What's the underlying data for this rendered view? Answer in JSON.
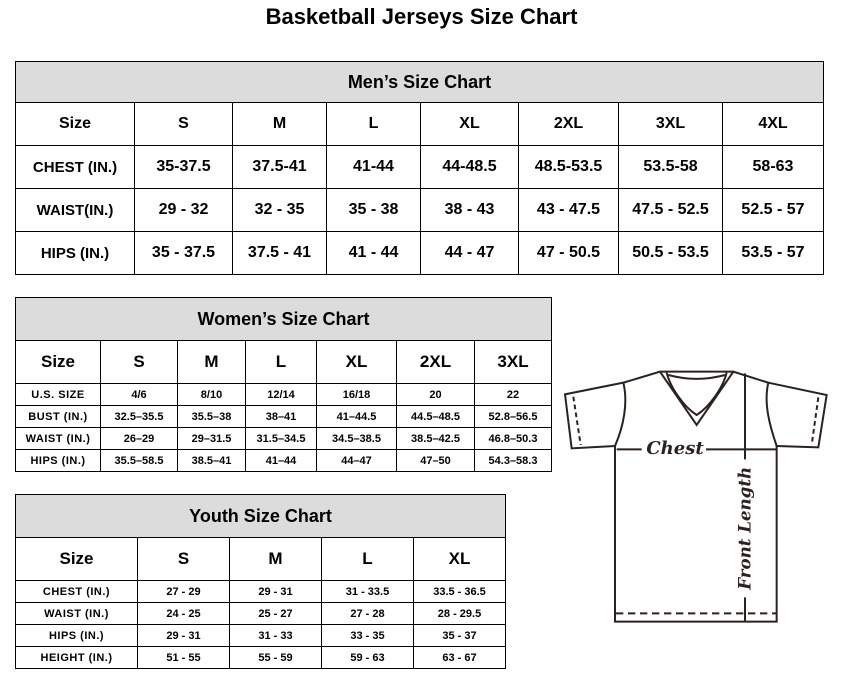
{
  "title": "Basketball Jerseys Size Chart",
  "men": {
    "heading": "Men’s Size Chart",
    "columns": [
      "Size",
      "S",
      "M",
      "L",
      "XL",
      "2XL",
      "3XL",
      "4XL"
    ],
    "rows": [
      [
        "CHEST (IN.)",
        "35-37.5",
        "37.5-41",
        "41-44",
        "44-48.5",
        "48.5-53.5",
        "53.5-58",
        "58-63"
      ],
      [
        "WAIST(IN.)",
        "29 - 32",
        "32 - 35",
        "35 - 38",
        "38 - 43",
        "43 - 47.5",
        "47.5 - 52.5",
        "52.5 - 57"
      ],
      [
        "HIPS (IN.)",
        "35 - 37.5",
        "37.5 - 41",
        "41 - 44",
        "44 - 47",
        "47 - 50.5",
        "50.5 - 53.5",
        "53.5 - 57"
      ]
    ]
  },
  "women": {
    "heading": "Women’s Size Chart",
    "columns": [
      "Size",
      "S",
      "M",
      "L",
      "XL",
      "2XL",
      "3XL"
    ],
    "rows": [
      [
        "U.S. SIZE",
        "4/6",
        "8/10",
        "12/14",
        "16/18",
        "20",
        "22"
      ],
      [
        "BUST (IN.)",
        "32.5–35.5",
        "35.5–38",
        "38–41",
        "41–44.5",
        "44.5–48.5",
        "52.8–56.5"
      ],
      [
        "WAIST (IN.)",
        "26–29",
        "29–31.5",
        "31.5–34.5",
        "34.5–38.5",
        "38.5–42.5",
        "46.8–50.3"
      ],
      [
        "HIPS (IN.)",
        "35.5–58.5",
        "38.5–41",
        "41–44",
        "44–47",
        "47–50",
        "54.3–58.3"
      ]
    ]
  },
  "youth": {
    "heading": "Youth Size Chart",
    "columns": [
      "Size",
      "S",
      "M",
      "L",
      "XL"
    ],
    "rows": [
      [
        "CHEST (IN.)",
        "27 - 29",
        "29 - 31",
        "31 - 33.5",
        "33.5 - 36.5"
      ],
      [
        "WAIST (IN.)",
        "24 - 25",
        "25 - 27",
        "27 - 28",
        "28 - 29.5"
      ],
      [
        "HIPS (IN.)",
        "29 - 31",
        "31 - 33",
        "33 - 35",
        "35 - 37"
      ],
      [
        "HEIGHT (IN.)",
        "51 - 55",
        "55 - 59",
        "59 - 63",
        "63 - 67"
      ]
    ]
  },
  "diagram": {
    "chest_label": "Chest",
    "length_label": "Front Length"
  }
}
